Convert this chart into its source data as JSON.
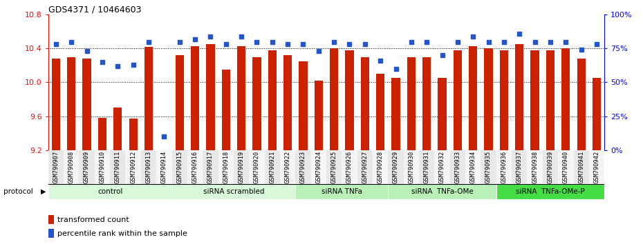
{
  "title": "GDS4371 / 10464603",
  "samples": [
    "GSM790907",
    "GSM790908",
    "GSM790909",
    "GSM790910",
    "GSM790911",
    "GSM790912",
    "GSM790913",
    "GSM790914",
    "GSM790915",
    "GSM790916",
    "GSM790917",
    "GSM790918",
    "GSM790919",
    "GSM790920",
    "GSM790921",
    "GSM790922",
    "GSM790923",
    "GSM790924",
    "GSM790925",
    "GSM790926",
    "GSM790927",
    "GSM790928",
    "GSM790929",
    "GSM790930",
    "GSM790931",
    "GSM790932",
    "GSM790933",
    "GSM790934",
    "GSM790935",
    "GSM790936",
    "GSM790937",
    "GSM790938",
    "GSM790939",
    "GSM790940",
    "GSM790941",
    "GSM790942"
  ],
  "bar_values": [
    10.28,
    10.3,
    10.28,
    9.58,
    9.7,
    9.57,
    10.42,
    9.2,
    10.32,
    10.43,
    10.45,
    10.15,
    10.43,
    10.3,
    10.38,
    10.32,
    10.25,
    10.02,
    10.4,
    10.38,
    10.3,
    10.1,
    10.05,
    10.3,
    10.3,
    10.05,
    10.38,
    10.43,
    10.4,
    10.38,
    10.45,
    10.38,
    10.38,
    10.4,
    10.28,
    10.05
  ],
  "percentile_values": [
    78,
    80,
    73,
    65,
    62,
    63,
    80,
    10,
    80,
    82,
    84,
    78,
    84,
    80,
    80,
    78,
    78,
    73,
    80,
    78,
    78,
    66,
    60,
    80,
    80,
    70,
    80,
    84,
    80,
    80,
    86,
    80,
    80,
    80,
    74,
    78
  ],
  "groups": [
    {
      "label": "control",
      "start": 0,
      "end": 8,
      "color": "#d9f7d9"
    },
    {
      "label": "siRNA scrambled",
      "start": 8,
      "end": 16,
      "color": "#d9f7d9"
    },
    {
      "label": "siRNA TNFa",
      "start": 16,
      "end": 22,
      "color": "#b8f0b8"
    },
    {
      "label": "siRNA  TNFa-OMe",
      "start": 22,
      "end": 29,
      "color": "#b8f0b8"
    },
    {
      "label": "siRNA  TNFa-OMe-P",
      "start": 29,
      "end": 36,
      "color": "#44dd44"
    }
  ],
  "group_dividers": [
    8,
    16,
    22,
    29
  ],
  "ylim_left": [
    9.2,
    10.8
  ],
  "ylim_right": [
    0,
    100
  ],
  "yticks_left": [
    9.2,
    9.6,
    10.0,
    10.4,
    10.8
  ],
  "yticks_right": [
    0,
    25,
    50,
    75,
    100
  ],
  "bar_color": "#cc2200",
  "dot_color": "#2255cc",
  "background_color": "#ffffff",
  "legend_label_bar": "transformed count",
  "legend_label_dot": "percentile rank within the sample"
}
